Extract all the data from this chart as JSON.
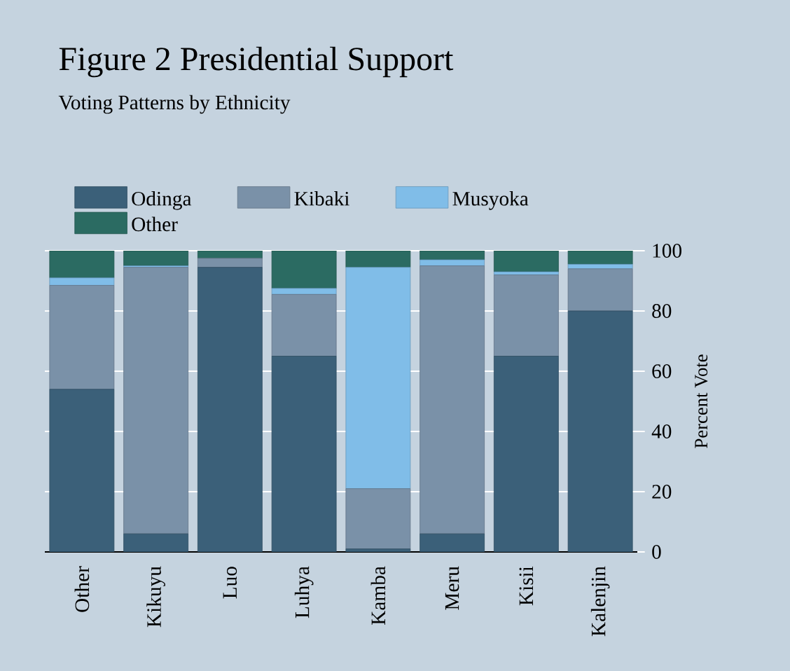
{
  "chart_data": {
    "type": "bar",
    "stacked": true,
    "title": "Figure 2 Presidential Support",
    "subtitle": "Voting Patterns by Ethnicity",
    "ylabel": "Percent Vote",
    "categories": [
      "Other",
      "Kikuyu",
      "Luo",
      "Luhya",
      "Kamba",
      "Meru",
      "Kisii",
      "Kalenjin"
    ],
    "series": [
      {
        "name": "Odinga",
        "color": "#3b6079",
        "values": [
          54,
          6,
          94.5,
          65,
          1,
          6,
          65,
          80
        ]
      },
      {
        "name": "Kibaki",
        "color": "#7a91a8",
        "values": [
          34.5,
          88.5,
          3,
          20.5,
          20,
          89,
          27,
          14
        ]
      },
      {
        "name": "Musyoka",
        "color": "#80bde8",
        "values": [
          2.5,
          0.5,
          0,
          2,
          73.5,
          2,
          1,
          1.5
        ]
      },
      {
        "name": "Other",
        "color": "#2b6b62",
        "values": [
          9,
          5,
          2.5,
          12.5,
          5.5,
          3,
          7,
          4.5
        ]
      }
    ],
    "ylim": [
      0,
      100
    ],
    "yticks": [
      0,
      20,
      40,
      60,
      80,
      100
    ],
    "grid": "y",
    "legend": "top"
  }
}
